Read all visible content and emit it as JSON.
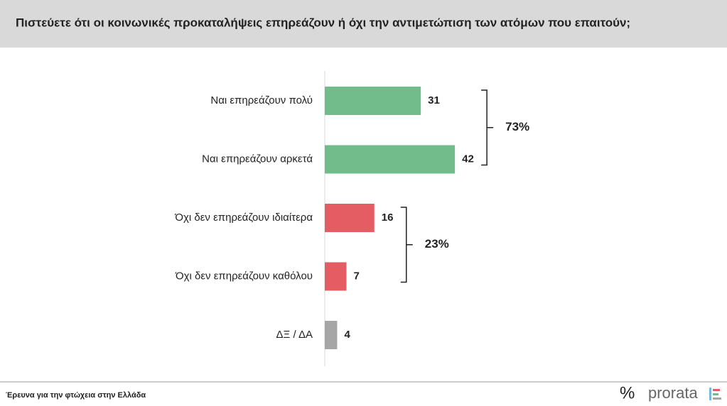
{
  "chart_data": {
    "type": "hbar",
    "title": "Πιστεύετε ότι οι κοινωνικές προκαταλήψεις επηρεάζουν ή όχι την αντιμετώπιση των ατόμων που επαιτούν;",
    "categories": [
      "Ναι επηρεάζουν πολύ",
      "Ναι επηρεάζουν αρκετά",
      "Όχι δεν επηρεάζουν ιδιαίτερα",
      "Όχι δεν επηρεάζουν καθόλου",
      "ΔΞ / ΔΑ"
    ],
    "values": [
      31,
      42,
      16,
      7,
      4
    ],
    "colors": [
      "#72bb8b",
      "#72bb8b",
      "#e35d62",
      "#e35d62",
      "#a6a6a6"
    ],
    "brackets": [
      {
        "label": "73%",
        "categories": [
          "Ναι επηρεάζουν πολύ",
          "Ναι επηρεάζουν αρκετά"
        ]
      },
      {
        "label": "23%",
        "categories": [
          "Όχι δεν επηρεάζουν ιδιαίτερα",
          "Όχι δεν επηρεάζουν καθόλου"
        ]
      }
    ]
  },
  "footer": {
    "source": "Έρευνα για την φτώχεια  στην Ελλάδα",
    "logo_symbol": "%",
    "logo_text": "prorata"
  }
}
